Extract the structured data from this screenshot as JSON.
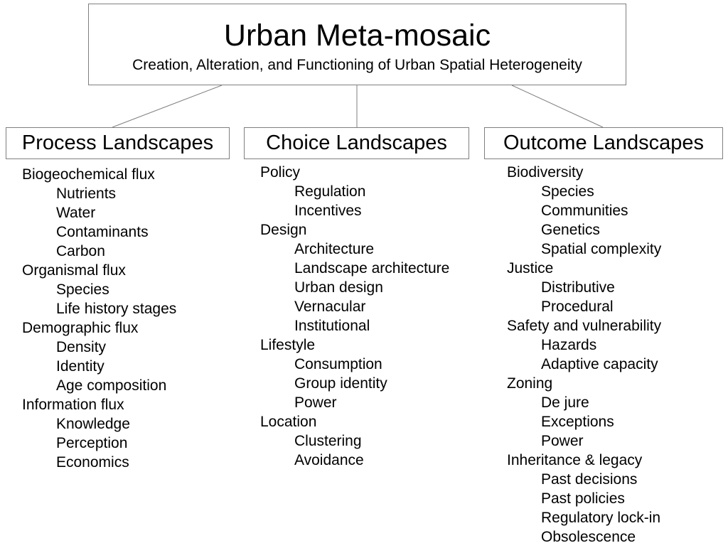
{
  "root": {
    "title": "Urban Meta-mosaic",
    "subtitle": "Creation, Alteration, and Functioning of Urban Spatial Heterogeneity"
  },
  "colors": {
    "line": "#7f7f7f",
    "text": "#000000",
    "background": "#ffffff"
  },
  "columns": [
    {
      "id": "process",
      "title": "Process Landscapes",
      "groups": [
        {
          "label": "Biogeochemical flux",
          "items": [
            "Nutrients",
            "Water",
            "Contaminants",
            "Carbon"
          ]
        },
        {
          "label": "Organismal flux",
          "items": [
            "Species",
            "Life history stages"
          ]
        },
        {
          "label": "Demographic flux",
          "items": [
            "Density",
            "Identity",
            "Age composition"
          ]
        },
        {
          "label": "Information flux",
          "items": [
            "Knowledge",
            "Perception",
            "Economics"
          ]
        }
      ]
    },
    {
      "id": "choice",
      "title": "Choice Landscapes",
      "groups": [
        {
          "label": "Policy",
          "items": [
            "Regulation",
            "Incentives"
          ]
        },
        {
          "label": "Design",
          "items": [
            "Architecture",
            "Landscape architecture",
            "Urban design",
            "Vernacular",
            "Institutional"
          ]
        },
        {
          "label": "Lifestyle",
          "items": [
            "Consumption",
            "Group identity",
            "Power"
          ]
        },
        {
          "label": "Location",
          "items": [
            "Clustering",
            "Avoidance"
          ]
        }
      ]
    },
    {
      "id": "outcome",
      "title": "Outcome Landscapes",
      "groups": [
        {
          "label": "Biodiversity",
          "items": [
            "Species",
            "Communities",
            "Genetics",
            "Spatial complexity"
          ]
        },
        {
          "label": "Justice",
          "items": [
            "Distributive",
            "Procedural"
          ]
        },
        {
          "label": "Safety and vulnerability",
          "items": [
            "Hazards",
            "Adaptive capacity"
          ]
        },
        {
          "label": "Zoning",
          "items": [
            "De jure",
            "Exceptions",
            "Power"
          ]
        },
        {
          "label": "Inheritance & legacy",
          "items": [
            "Past decisions",
            "Past policies",
            "Regulatory lock-in",
            "Obsolescence"
          ]
        }
      ]
    }
  ]
}
